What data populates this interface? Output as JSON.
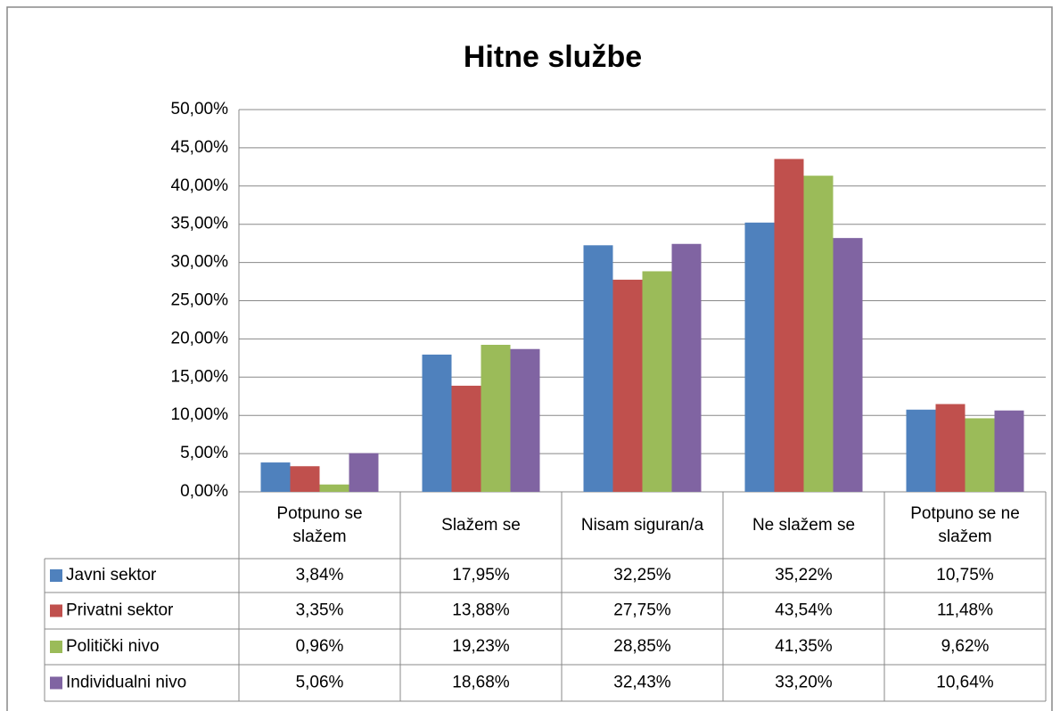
{
  "chart_data": {
    "type": "bar",
    "title": "Hitne službe",
    "categories": [
      "Potpuno se slažem",
      "Slažem se",
      "Nisam siguran/a",
      "Ne slažem se",
      "Potpuno se ne slažem"
    ],
    "series": [
      {
        "name": "Javni sektor",
        "color": "#4f81bd",
        "values": [
          3.84,
          17.95,
          32.25,
          35.22,
          10.75
        ],
        "value_labels": [
          "3,84%",
          "17,95%",
          "32,25%",
          "35,22%",
          "10,75%"
        ]
      },
      {
        "name": "Privatni sektor",
        "color": "#c0504d",
        "values": [
          3.35,
          13.88,
          27.75,
          43.54,
          11.48
        ],
        "value_labels": [
          "3,35%",
          "13,88%",
          "27,75%",
          "43,54%",
          "11,48%"
        ]
      },
      {
        "name": "Politički nivo",
        "color": "#9bbb59",
        "values": [
          0.96,
          19.23,
          28.85,
          41.35,
          9.62
        ],
        "value_labels": [
          "0,96%",
          "19,23%",
          "28,85%",
          "41,35%",
          "9,62%"
        ]
      },
      {
        "name": "Individualni nivo",
        "color": "#8064a2",
        "values": [
          5.06,
          18.68,
          32.43,
          33.2,
          10.64
        ],
        "value_labels": [
          "5,06%",
          "18,68%",
          "32,43%",
          "33,20%",
          "10,64%"
        ]
      }
    ],
    "ylim": [
      0,
      50
    ],
    "yticks": [
      {
        "value": 0,
        "label": "0,00%"
      },
      {
        "value": 5,
        "label": "5,00%"
      },
      {
        "value": 10,
        "label": "10,00%"
      },
      {
        "value": 15,
        "label": "15,00%"
      },
      {
        "value": 20,
        "label": "20,00%"
      },
      {
        "value": 25,
        "label": "25,00%"
      },
      {
        "value": 30,
        "label": "30,00%"
      },
      {
        "value": 35,
        "label": "35,00%"
      },
      {
        "value": 40,
        "label": "40,00%"
      },
      {
        "value": 45,
        "label": "45,00%"
      },
      {
        "value": 50,
        "label": "50,00%"
      }
    ],
    "grid": true
  }
}
